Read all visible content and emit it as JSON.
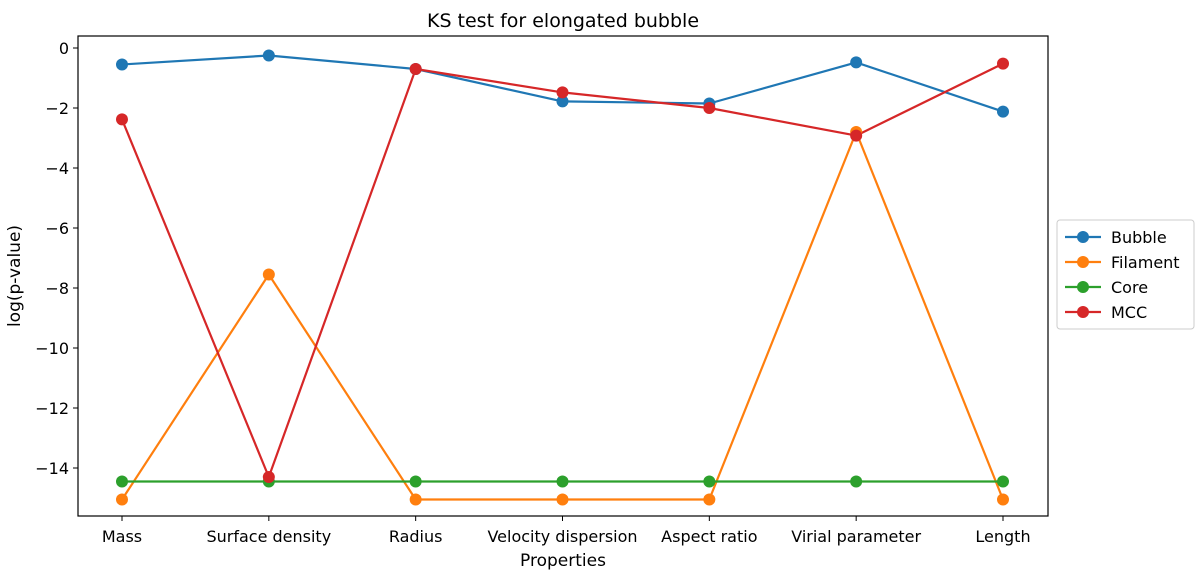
{
  "chart_data": {
    "type": "line",
    "title": "KS test for elongated bubble",
    "xlabel": "Properties",
    "ylabel": "log(p-value)",
    "categories": [
      "Mass",
      "Surface density",
      "Radius",
      "Velocity dispersion",
      "Aspect ratio",
      "Virial parameter",
      "Length"
    ],
    "ylim": [
      -15.6,
      0.4
    ],
    "yticks": [
      0,
      -2,
      -4,
      -6,
      -8,
      -10,
      -12,
      -14
    ],
    "ytick_labels": [
      "0",
      "−2",
      "−4",
      "−6",
      "−8",
      "−10",
      "−12",
      "−14"
    ],
    "grid": false,
    "legend_position": "center-right-outside",
    "series": [
      {
        "name": "Bubble",
        "color": "#1f77b4",
        "values": [
          -0.55,
          -0.25,
          -0.7,
          -1.78,
          -1.85,
          -0.48,
          -2.12
        ]
      },
      {
        "name": "Filament",
        "color": "#ff7f0e",
        "values": [
          -15.05,
          -7.55,
          -15.05,
          -15.05,
          -15.05,
          -2.8,
          -15.05
        ]
      },
      {
        "name": "Core",
        "color": "#2ca02c",
        "values": [
          -14.45,
          -14.45,
          -14.45,
          -14.45,
          -14.45,
          -14.45,
          -14.45
        ]
      },
      {
        "name": "MCC",
        "color": "#d62728",
        "values": [
          -2.38,
          -14.3,
          -0.7,
          -1.48,
          -2.0,
          -2.92,
          -0.52
        ]
      }
    ]
  }
}
